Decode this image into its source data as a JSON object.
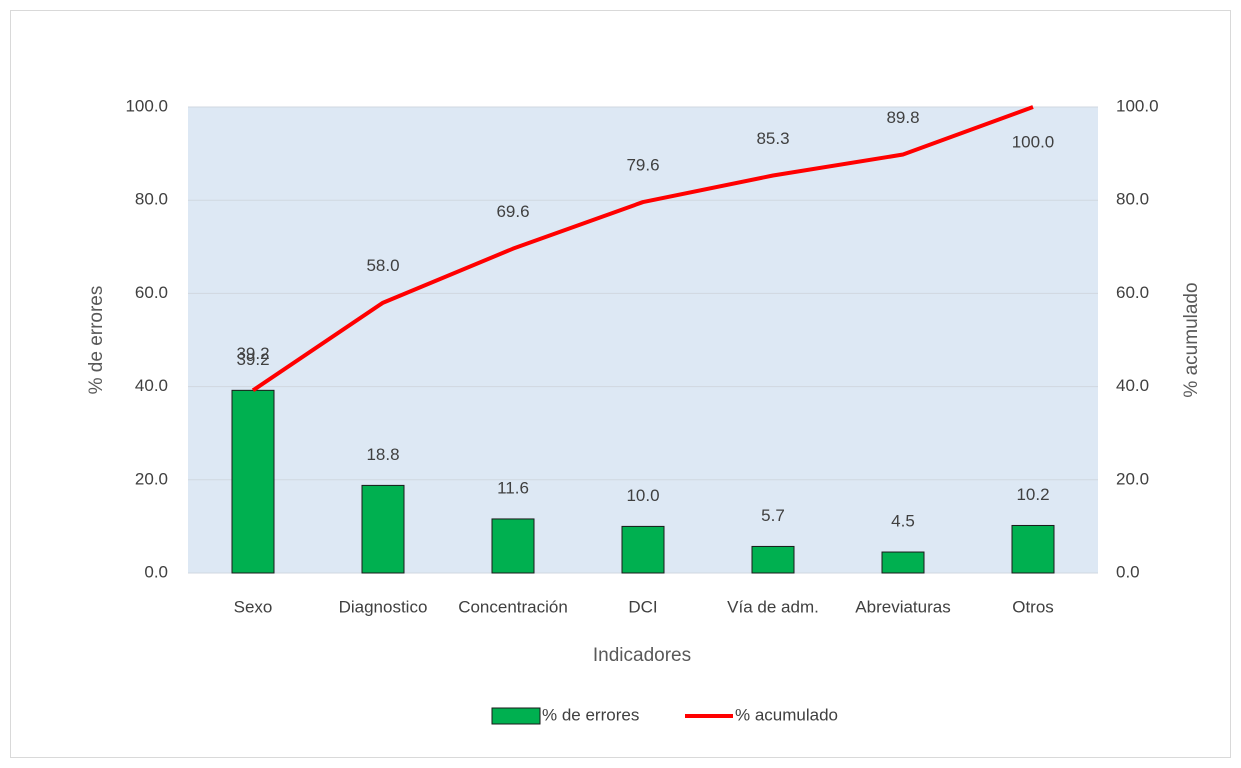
{
  "chart_data": {
    "type": "pareto",
    "x_label": "Indicadores",
    "y_label": "% de errores",
    "y2_label": "% acumulado",
    "categories": [
      "Sexo",
      "Diagnostico",
      "Concentración",
      "DCI",
      "Vía de adm.",
      "Abreviaturas",
      "Otros"
    ],
    "series": [
      {
        "name": "% de errores",
        "type": "bar",
        "color": "#00b050",
        "values": [
          39.2,
          18.8,
          11.6,
          10.0,
          5.7,
          4.5,
          10.2
        ],
        "value_labels": [
          "39.2",
          "18.8",
          "11.6",
          "10.0",
          "5.7",
          "4.5",
          "10.2"
        ]
      },
      {
        "name": "% acumulado",
        "type": "line",
        "axis": "y2",
        "color": "#ff0000",
        "values": [
          39.2,
          58.0,
          69.6,
          79.6,
          85.3,
          89.8,
          100.0
        ],
        "value_labels": [
          "39.2",
          "58.0",
          "69.6",
          "79.6",
          "85.3",
          "89.8",
          "100.0"
        ]
      }
    ],
    "ylim": [
      0,
      100
    ],
    "yticks": [
      {
        "value": 0,
        "label": "0.0"
      },
      {
        "value": 20,
        "label": "20.0"
      },
      {
        "value": 40,
        "label": "40.0"
      },
      {
        "value": 60,
        "label": "60.0"
      },
      {
        "value": 80,
        "label": "80.0"
      },
      {
        "value": 100,
        "label": "100.0"
      }
    ],
    "y2lim": [
      0,
      100
    ],
    "y2ticks": [
      {
        "value": 0,
        "label": "0.0"
      },
      {
        "value": 20,
        "label": "20.0"
      },
      {
        "value": 40,
        "label": "40.0"
      },
      {
        "value": 60,
        "label": "60.0"
      },
      {
        "value": 80,
        "label": "80.0"
      },
      {
        "value": 100,
        "label": "100.0"
      }
    ],
    "grid": true,
    "legend": "bottom"
  }
}
